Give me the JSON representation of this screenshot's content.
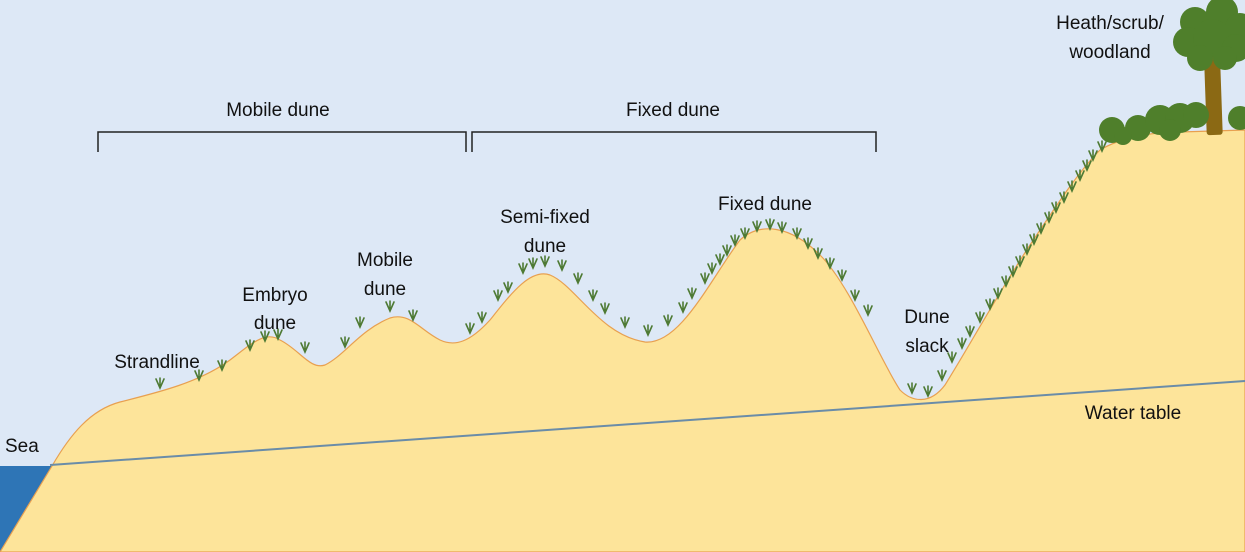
{
  "colors": {
    "sky": "#dde8f6",
    "sand": "#fde49a",
    "sand_edge": "#e8a050",
    "sea": "#2e75b6",
    "water_table": "#6a8ca8",
    "grass": "#4e7a34",
    "bushes": "#4f7f2b",
    "trunk": "#8b6914",
    "bracket": "#222222"
  },
  "icons": {
    "grass_tuft": "grass-tuft-icon",
    "tree": "tree-icon",
    "bushes": "bushes-icon"
  },
  "brackets": {
    "mobile": "Mobile dune",
    "fixed": "Fixed dune"
  },
  "labels": {
    "sea": "Sea",
    "strandline": "Strandline",
    "embryo_line1": "Embryo",
    "embryo_line2": "dune",
    "mobile_line1": "Mobile",
    "mobile_line2": "dune",
    "semifixed_line1": "Semi-fixed",
    "semifixed_line2": "dune",
    "fixed": "Fixed dune",
    "slack_line1": "Dune",
    "slack_line2": "slack",
    "water_table": "Water table",
    "heath_line1": "Heath/scrub/",
    "heath_line2": "woodland"
  }
}
